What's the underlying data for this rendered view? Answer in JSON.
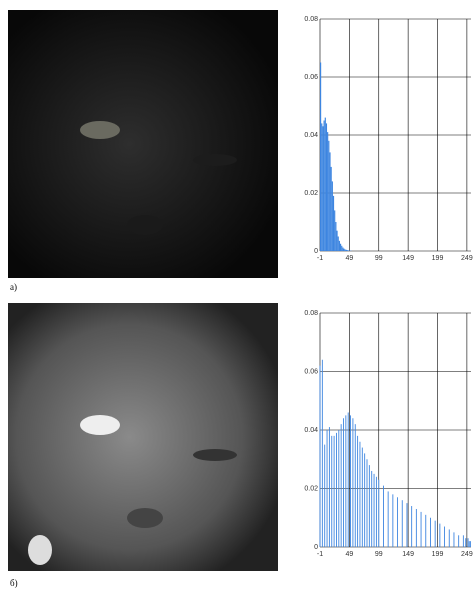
{
  "chart_data": [
    {
      "type": "histogram",
      "label": "а)",
      "color": "#3d85e0",
      "bins": [
        -1,
        1,
        3,
        5,
        7,
        9,
        11,
        13,
        15,
        17,
        19,
        21,
        23,
        25,
        27,
        29,
        31,
        33,
        35,
        37,
        39,
        41,
        43,
        45,
        47,
        49,
        51,
        53,
        55,
        57,
        59
      ],
      "values": [
        0.065,
        0.044,
        0.043,
        0.045,
        0.046,
        0.044,
        0.041,
        0.038,
        0.034,
        0.029,
        0.024,
        0.019,
        0.014,
        0.01,
        0.007,
        0.005,
        0.0035,
        0.0025,
        0.0018,
        0.0012,
        0.0008,
        0.0005,
        0.0004,
        0.0003,
        0.0002,
        0.0001,
        0.0001,
        0,
        0,
        0
      ],
      "xlim": [
        -1,
        256
      ],
      "xticks": [
        -1,
        49,
        99,
        149,
        199,
        249
      ],
      "ylim": [
        0,
        0.08
      ],
      "yticks": [
        0,
        0.02,
        0.04,
        0.06,
        0.08
      ],
      "grid": true
    },
    {
      "type": "stem",
      "label": "б)",
      "color": "#3d85e0",
      "x": [
        -1,
        3,
        7,
        11,
        15,
        19,
        23,
        27,
        31,
        35,
        39,
        43,
        47,
        51,
        55,
        59,
        63,
        67,
        71,
        75,
        79,
        83,
        87,
        91,
        95,
        99,
        107,
        115,
        123,
        131,
        139,
        147,
        155,
        163,
        171,
        179,
        187,
        195,
        203,
        211,
        219,
        227,
        235,
        243,
        247,
        251,
        253,
        255
      ],
      "values": [
        0.062,
        0.064,
        0.035,
        0.04,
        0.041,
        0.038,
        0.038,
        0.039,
        0.04,
        0.042,
        0.044,
        0.045,
        0.046,
        0.045,
        0.044,
        0.042,
        0.038,
        0.036,
        0.034,
        0.032,
        0.03,
        0.028,
        0.026,
        0.025,
        0.024,
        0.023,
        0.021,
        0.019,
        0.018,
        0.017,
        0.016,
        0.015,
        0.014,
        0.013,
        0.012,
        0.011,
        0.01,
        0.009,
        0.008,
        0.007,
        0.006,
        0.005,
        0.004,
        0.004,
        0.003,
        0.003,
        0.002,
        0.002
      ],
      "xlim": [
        -1,
        256
      ],
      "xticks": [
        -1,
        49,
        99,
        149,
        199,
        249
      ],
      "ylim": [
        0,
        0.08
      ],
      "yticks": [
        0,
        0.02,
        0.04,
        0.06,
        0.08
      ],
      "grid": true
    }
  ]
}
